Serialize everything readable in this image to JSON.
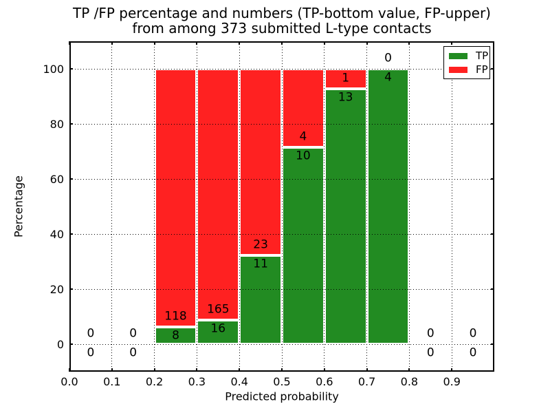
{
  "chart_data": {
    "type": "bar",
    "stacked": true,
    "title": "TP /FP percentage and numbers (TP-bottom value, FP-upper)\nfrom among 373 submitted L-type contacts",
    "title_lines": [
      "TP /FP percentage and numbers (TP-bottom value, FP-upper)",
      "from among 373 submitted L-type contacts"
    ],
    "xlabel": "Predicted probability",
    "ylabel": "Percentage",
    "xlim": [
      0.0,
      1.0
    ],
    "ylim": [
      -10,
      110
    ],
    "xticks": [
      0.0,
      0.1,
      0.2,
      0.3,
      0.4,
      0.5,
      0.6,
      0.7,
      0.8,
      0.9
    ],
    "yticks": [
      0,
      20,
      40,
      60,
      80,
      100
    ],
    "grid": "dotted",
    "legend_position": "upper right",
    "total_submitted": 373,
    "series": [
      {
        "name": "TP",
        "color": "#228B22"
      },
      {
        "name": "FP",
        "color": "#FF2121"
      }
    ],
    "bins": [
      {
        "x0": 0.0,
        "x1": 0.1,
        "tp_count": 0,
        "fp_count": 0,
        "tp_pct": 0,
        "fp_pct": 0
      },
      {
        "x0": 0.1,
        "x1": 0.2,
        "tp_count": 0,
        "fp_count": 0,
        "tp_pct": 0,
        "fp_pct": 0
      },
      {
        "x0": 0.2,
        "x1": 0.3,
        "tp_count": 8,
        "fp_count": 118,
        "tp_pct": 6.35,
        "fp_pct": 93.65
      },
      {
        "x0": 0.3,
        "x1": 0.4,
        "tp_count": 16,
        "fp_count": 165,
        "tp_pct": 8.84,
        "fp_pct": 91.16
      },
      {
        "x0": 0.4,
        "x1": 0.5,
        "tp_count": 11,
        "fp_count": 23,
        "tp_pct": 32.35,
        "fp_pct": 67.65
      },
      {
        "x0": 0.5,
        "x1": 0.6,
        "tp_count": 10,
        "fp_count": 4,
        "tp_pct": 71.43,
        "fp_pct": 28.57
      },
      {
        "x0": 0.6,
        "x1": 0.7,
        "tp_count": 13,
        "fp_count": 1,
        "tp_pct": 92.86,
        "fp_pct": 7.14
      },
      {
        "x0": 0.7,
        "x1": 0.8,
        "tp_count": 4,
        "fp_count": 0,
        "tp_pct": 100,
        "fp_pct": 0
      },
      {
        "x0": 0.8,
        "x1": 0.9,
        "tp_count": 0,
        "fp_count": 0,
        "tp_pct": 0,
        "fp_pct": 0
      },
      {
        "x0": 0.9,
        "x1": 1.0,
        "tp_count": 0,
        "fp_count": 0,
        "tp_pct": 0,
        "fp_pct": 0
      }
    ]
  }
}
